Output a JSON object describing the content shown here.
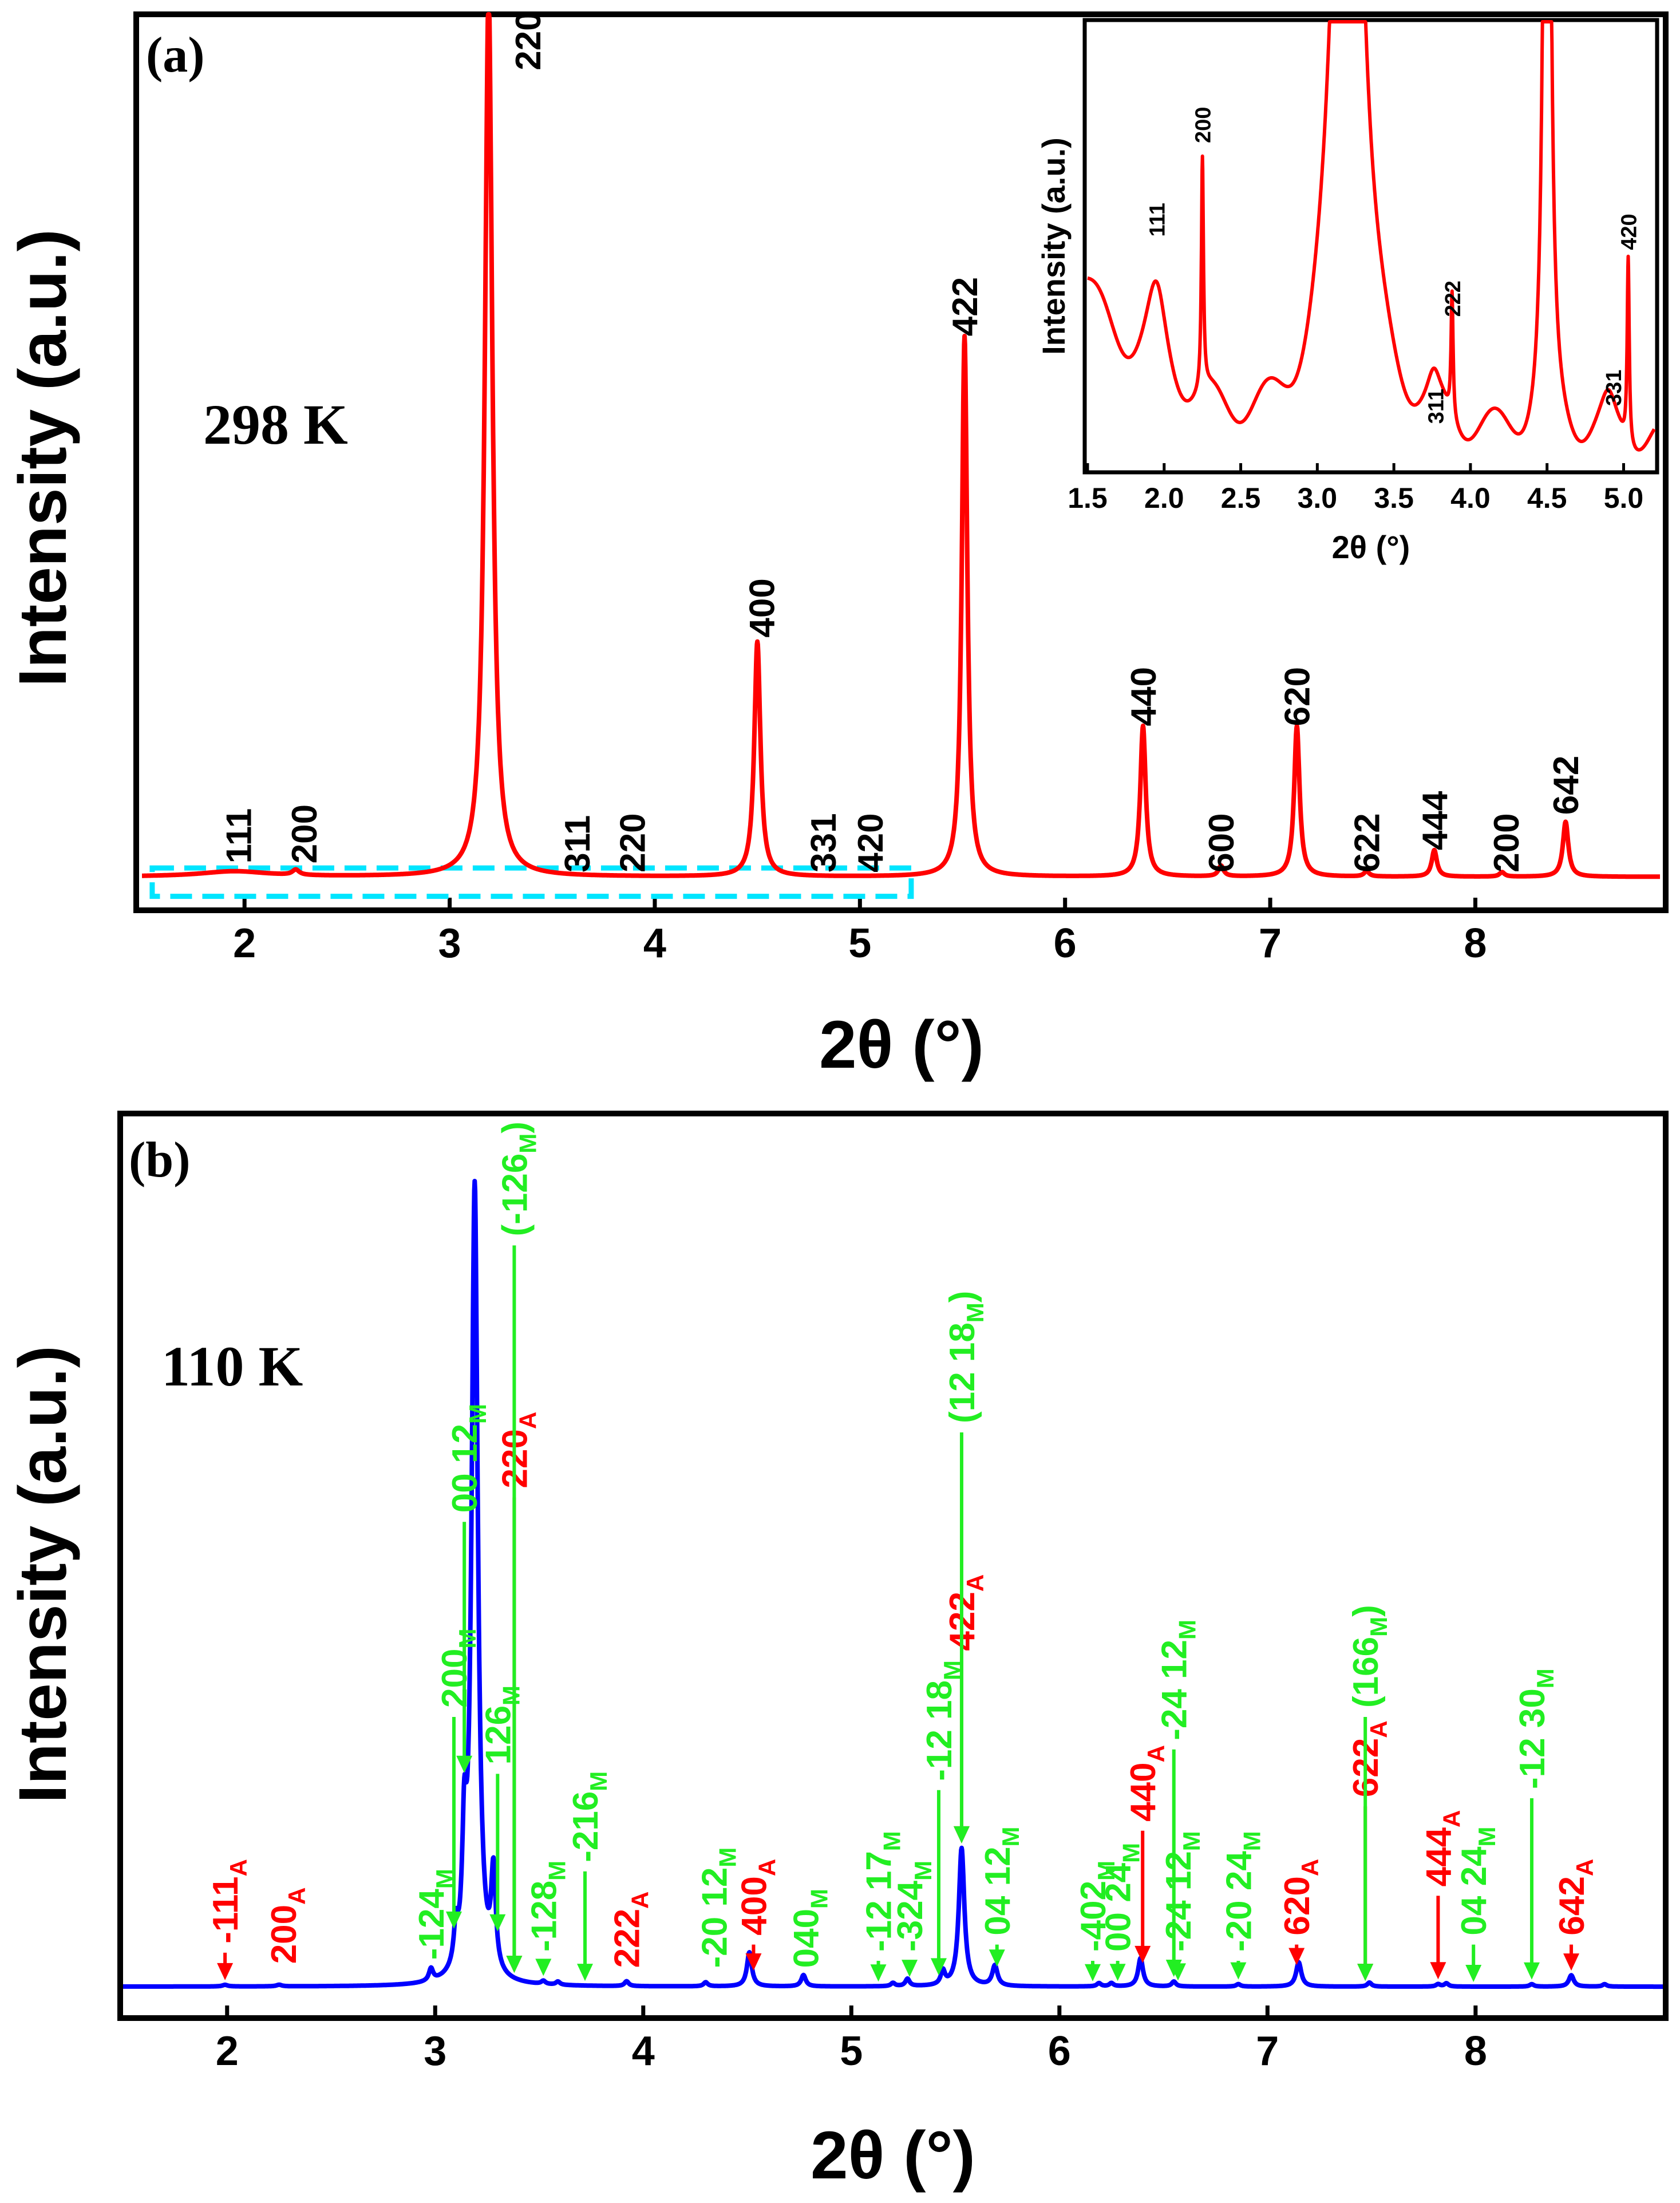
{
  "chart_data": [
    {
      "panel": "a",
      "type": "line",
      "panel_label": "(a)",
      "temperature": "298 K",
      "xlabel": "2θ (°)",
      "ylabel": "Intensity (a.u.)",
      "xlim": [
        1.5,
        8.9
      ],
      "ylim": [
        0,
        1
      ],
      "x_ticks": [
        2,
        3,
        4,
        5,
        6,
        7,
        8
      ],
      "x_tick_labels": [
        "2",
        "3",
        "4",
        "5",
        "6",
        "7",
        "8"
      ],
      "colors": {
        "line": "#ff0000",
        "box": "#00e5ff",
        "text": "#000000"
      },
      "baseline": 0.03,
      "peaks": [
        {
          "x": 1.95,
          "h": 0.006,
          "w": 0.2
        },
        {
          "x": 2.25,
          "h": 0.006,
          "w": 0.02
        },
        {
          "x": 3.19,
          "h": 1.0,
          "w": 0.022
        },
        {
          "x": 4.5,
          "h": 0.265,
          "w": 0.018
        },
        {
          "x": 5.51,
          "h": 0.61,
          "w": 0.016
        },
        {
          "x": 6.38,
          "h": 0.17,
          "w": 0.016
        },
        {
          "x": 6.76,
          "h": 0.012,
          "w": 0.015
        },
        {
          "x": 7.13,
          "h": 0.17,
          "w": 0.016
        },
        {
          "x": 7.47,
          "h": 0.006,
          "w": 0.015
        },
        {
          "x": 7.8,
          "h": 0.03,
          "w": 0.015
        },
        {
          "x": 8.13,
          "h": 0.005,
          "w": 0.015
        },
        {
          "x": 8.44,
          "h": 0.062,
          "w": 0.016
        }
      ],
      "labels": [
        {
          "text": "111",
          "x": 1.97,
          "y": 0.045
        },
        {
          "text": "200",
          "x": 2.29,
          "y": 0.045
        },
        {
          "text": "220",
          "x": 3.38,
          "y": 0.94
        },
        {
          "text": "311",
          "x": 3.62,
          "y": 0.035
        },
        {
          "text": "220",
          "x": 3.89,
          "y": 0.035
        },
        {
          "text": "400",
          "x": 4.52,
          "y": 0.3
        },
        {
          "text": "331",
          "x": 4.82,
          "y": 0.035
        },
        {
          "text": "420",
          "x": 5.05,
          "y": 0.035
        },
        {
          "text": "422",
          "x": 5.51,
          "y": 0.64
        },
        {
          "text": "440",
          "x": 6.38,
          "y": 0.2
        },
        {
          "text": "600",
          "x": 6.76,
          "y": 0.035
        },
        {
          "text": "620",
          "x": 7.13,
          "y": 0.2
        },
        {
          "text": "622",
          "x": 7.47,
          "y": 0.035
        },
        {
          "text": "444",
          "x": 7.8,
          "y": 0.06
        },
        {
          "text": "200",
          "x": 8.15,
          "y": 0.035
        },
        {
          "text": "642",
          "x": 8.44,
          "y": 0.1
        }
      ],
      "zoom_box": {
        "x0": 1.55,
        "x1": 5.25,
        "y0": 0.008,
        "y1": 0.04
      },
      "inset": {
        "xlabel": "2θ (°)",
        "ylabel": "Intensity (a.u.)",
        "xlim": [
          1.5,
          5.2
        ],
        "ylim": [
          0,
          1
        ],
        "x_ticks": [
          1.5,
          2.0,
          2.5,
          3.0,
          3.5,
          4.0,
          4.5,
          5.0
        ],
        "x_tick_labels": [
          "1.5",
          "2.0",
          "2.5",
          "3.0",
          "3.5",
          "4.0",
          "4.5",
          "5.0"
        ],
        "labels": [
          {
            "text": "111",
            "x": 1.95,
            "y": 0.52
          },
          {
            "text": "200",
            "x": 2.25,
            "y": 0.73
          },
          {
            "text": "222",
            "x": 3.88,
            "y": 0.34
          },
          {
            "text": "311",
            "x": 3.77,
            "y": 0.1
          },
          {
            "text": "331",
            "x": 4.93,
            "y": 0.14
          },
          {
            "text": "420",
            "x": 5.03,
            "y": 0.49
          }
        ]
      }
    },
    {
      "panel": "b",
      "type": "line",
      "panel_label": "(b)",
      "temperature": "110 K",
      "xlabel": "2θ (°)",
      "ylabel": "Intensity (a.u.)",
      "xlim": [
        1.5,
        8.9
      ],
      "ylim": [
        0,
        1
      ],
      "x_ticks": [
        2,
        3,
        4,
        5,
        6,
        7,
        8
      ],
      "x_tick_labels": [
        "2",
        "3",
        "4",
        "5",
        "6",
        "7",
        "8"
      ],
      "colors": {
        "line": "#0000ff",
        "austenite": "#ff0000",
        "martensite": "#22ee22"
      },
      "baseline": 0.014,
      "peaks": [
        {
          "x": 1.99,
          "h": 0.002,
          "w": 0.015
        },
        {
          "x": 2.25,
          "h": 0.002,
          "w": 0.015
        },
        {
          "x": 2.98,
          "h": 0.015,
          "w": 0.012
        },
        {
          "x": 3.1,
          "h": 0.045,
          "w": 0.012
        },
        {
          "x": 3.14,
          "h": 0.14,
          "w": 0.012
        },
        {
          "x": 3.19,
          "h": 0.98,
          "w": 0.018
        },
        {
          "x": 3.28,
          "h": 0.12,
          "w": 0.013
        },
        {
          "x": 3.52,
          "h": 0.004,
          "w": 0.012
        },
        {
          "x": 3.59,
          "h": 0.004,
          "w": 0.012
        },
        {
          "x": 3.92,
          "h": 0.006,
          "w": 0.012
        },
        {
          "x": 4.3,
          "h": 0.005,
          "w": 0.012
        },
        {
          "x": 4.51,
          "h": 0.042,
          "w": 0.014
        },
        {
          "x": 4.77,
          "h": 0.014,
          "w": 0.013
        },
        {
          "x": 5.2,
          "h": 0.004,
          "w": 0.012
        },
        {
          "x": 5.27,
          "h": 0.009,
          "w": 0.012
        },
        {
          "x": 5.44,
          "h": 0.017,
          "w": 0.012
        },
        {
          "x": 5.53,
          "h": 0.17,
          "w": 0.016
        },
        {
          "x": 5.69,
          "h": 0.025,
          "w": 0.015
        },
        {
          "x": 6.19,
          "h": 0.004,
          "w": 0.012
        },
        {
          "x": 6.25,
          "h": 0.004,
          "w": 0.012
        },
        {
          "x": 6.39,
          "h": 0.035,
          "w": 0.014
        },
        {
          "x": 6.55,
          "h": 0.006,
          "w": 0.012
        },
        {
          "x": 6.86,
          "h": 0.003,
          "w": 0.012
        },
        {
          "x": 7.15,
          "h": 0.03,
          "w": 0.015
        },
        {
          "x": 7.49,
          "h": 0.005,
          "w": 0.012
        },
        {
          "x": 7.82,
          "h": 0.003,
          "w": 0.012
        },
        {
          "x": 7.86,
          "h": 0.004,
          "w": 0.012
        },
        {
          "x": 8.27,
          "h": 0.003,
          "w": 0.012
        },
        {
          "x": 8.46,
          "h": 0.014,
          "w": 0.014
        },
        {
          "x": 8.62,
          "h": 0.003,
          "w": 0.012
        }
      ],
      "labels": [
        {
          "main": "111",
          "sub": "A",
          "prefix": "-",
          "color": "austenite",
          "x": 1.99,
          "y": 0.06
        },
        {
          "main": "200",
          "sub": "A",
          "prefix": "",
          "color": "austenite",
          "x": 2.27,
          "y": 0.035
        },
        {
          "main": "-124",
          "sub": "M",
          "prefix": "",
          "color": "martensite",
          "x": 2.98,
          "y": 0.04
        },
        {
          "main": "200",
          "sub": "M",
          "prefix": "",
          "color": "martensite",
          "x": 3.09,
          "y": 0.35
        },
        {
          "main": "00 12",
          "sub": "M",
          "prefix": "",
          "color": "martensite",
          "x": 3.14,
          "y": 0.59
        },
        {
          "main": "220",
          "sub": "A",
          "prefix": "",
          "color": "austenite",
          "x": 3.38,
          "y": 0.62
        },
        {
          "main": "(-126",
          "sub": "M",
          "suffix": ")",
          "color": "martensite",
          "x": 3.38,
          "y": 0.93
        },
        {
          "main": "126",
          "sub": "M",
          "prefix": "",
          "color": "martensite",
          "x": 3.3,
          "y": 0.28
        },
        {
          "main": "128",
          "sub": "M",
          "prefix": "-",
          "color": "martensite",
          "x": 3.52,
          "y": 0.05
        },
        {
          "main": "-216",
          "sub": "M",
          "prefix": "",
          "color": "martensite",
          "x": 3.72,
          "y": 0.16
        },
        {
          "main": "222",
          "sub": "A",
          "prefix": "",
          "color": "austenite",
          "x": 3.92,
          "y": 0.03
        },
        {
          "main": "-20 12",
          "sub": "M",
          "prefix": "",
          "color": "martensite",
          "x": 4.34,
          "y": 0.03
        },
        {
          "main": "400",
          "sub": "A",
          "prefix": "",
          "color": "austenite",
          "x": 4.53,
          "y": 0.07
        },
        {
          "main": "040",
          "sub": "M",
          "prefix": "",
          "color": "martensite",
          "x": 4.78,
          "y": 0.03
        },
        {
          "main": "-12 17",
          "sub": "M",
          "prefix": "",
          "color": "martensite",
          "x": 5.13,
          "y": 0.05
        },
        {
          "main": "-324",
          "sub": "M",
          "prefix": "",
          "color": "martensite",
          "x": 5.28,
          "y": 0.05
        },
        {
          "main": "-12 18",
          "sub": "M",
          "prefix": "",
          "color": "martensite",
          "x": 5.42,
          "y": 0.26
        },
        {
          "main": "422",
          "sub": "A",
          "prefix": "",
          "color": "austenite",
          "x": 5.53,
          "y": 0.42
        },
        {
          "main": "(12 18",
          "sub": "M",
          "suffix": ")",
          "color": "martensite",
          "x": 5.53,
          "y": 0.7
        },
        {
          "main": "04 12",
          "sub": "M",
          "prefix": "",
          "color": "martensite",
          "x": 5.7,
          "y": 0.07
        },
        {
          "main": "-402",
          "sub": "M",
          "prefix": "",
          "color": "martensite",
          "x": 6.16,
          "y": 0.05
        },
        {
          "main": "00 24",
          "sub": "M",
          "prefix": "",
          "color": "martensite",
          "x": 6.28,
          "y": 0.05
        },
        {
          "main": "440",
          "sub": "A",
          "prefix": "",
          "color": "austenite",
          "x": 6.4,
          "y": 0.21
        },
        {
          "main": "-24 12",
          "sub": "M",
          "prefix": "",
          "color": "martensite",
          "x": 6.55,
          "y": 0.31
        },
        {
          "main": "-24 12",
          "sub": "M",
          "prefix": "",
          "color": "martensite",
          "x": 6.57,
          "y": 0.05
        },
        {
          "main": "-20 24",
          "sub": "M",
          "prefix": "",
          "color": "martensite",
          "x": 6.86,
          "y": 0.05
        },
        {
          "main": "620",
          "sub": "A",
          "prefix": "",
          "color": "austenite",
          "x": 7.14,
          "y": 0.07
        },
        {
          "main": "622",
          "sub": "A",
          "prefix": "",
          "color": "austenite",
          "x": 7.47,
          "y": 0.24
        },
        {
          "main": "(166",
          "sub": "M",
          "suffix": ")",
          "color": "martensite",
          "x": 7.47,
          "y": 0.35
        },
        {
          "main": "444",
          "sub": "A",
          "prefix": "",
          "color": "austenite",
          "x": 7.82,
          "y": 0.13
        },
        {
          "main": "04 24",
          "sub": "M",
          "prefix": "",
          "color": "martensite",
          "x": 7.99,
          "y": 0.07
        },
        {
          "main": "-12 30",
          "sub": "M",
          "prefix": "",
          "color": "martensite",
          "x": 8.27,
          "y": 0.25
        },
        {
          "main": "642",
          "sub": "A",
          "prefix": "",
          "color": "austenite",
          "x": 8.46,
          "y": 0.07
        }
      ]
    }
  ]
}
